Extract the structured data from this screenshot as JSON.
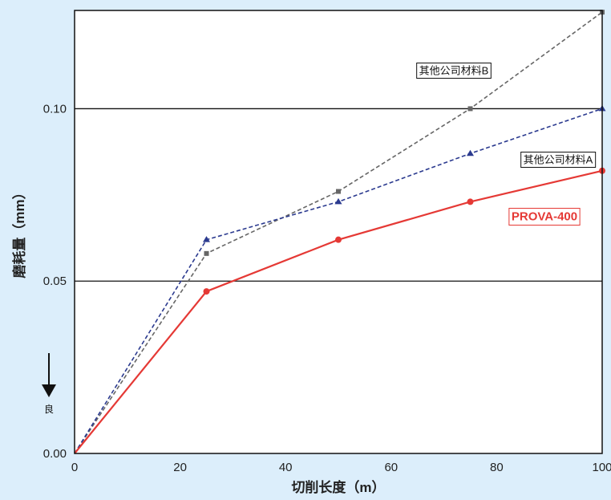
{
  "chart_data": {
    "type": "line",
    "xlabel": "切削长度（m）",
    "ylabel": "磨耗量（mm）",
    "xlim": [
      0,
      100
    ],
    "ylim": [
      0,
      0.1285
    ],
    "x_ticks": [
      0,
      20,
      40,
      60,
      80,
      100
    ],
    "y_ticks": [
      0.0,
      0.05,
      0.1
    ],
    "x_tick_labels": [
      "0",
      "20",
      "40",
      "60",
      "80",
      "100"
    ],
    "y_tick_labels": [
      "0.00",
      "0.05",
      "0.10"
    ],
    "grid": "horizontal",
    "better_direction_label": "良",
    "series": [
      {
        "name": "其他公司材料B",
        "color": "#666666",
        "style": "dashed",
        "marker": "square",
        "x": [
          0,
          25,
          50,
          75,
          100
        ],
        "y": [
          0,
          0.058,
          0.076,
          0.1,
          0.128
        ]
      },
      {
        "name": "其他公司材料A",
        "color": "#2b3a8f",
        "style": "dashed",
        "marker": "triangle",
        "x": [
          0,
          25,
          50,
          75,
          100
        ],
        "y": [
          0,
          0.062,
          0.073,
          0.087,
          0.1
        ]
      },
      {
        "name": "PROVA-400",
        "color": "#e53935",
        "style": "solid",
        "marker": "circle",
        "x": [
          0,
          25,
          50,
          75,
          100
        ],
        "y": [
          0,
          0.047,
          0.062,
          0.073,
          0.082
        ]
      }
    ]
  }
}
